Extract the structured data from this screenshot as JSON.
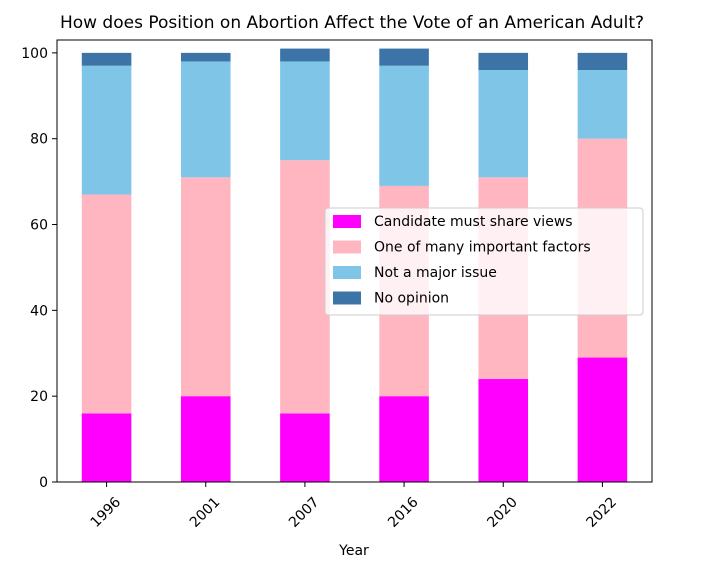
{
  "chart_data": {
    "type": "bar",
    "stacked": true,
    "title": "How does Position on Abortion Affect the Vote of an American Adult?",
    "xlabel": "Year",
    "ylabel": "",
    "categories": [
      "1996",
      "2001",
      "2007",
      "2016",
      "2020",
      "2022"
    ],
    "ylim": [
      0,
      103
    ],
    "yticks": [
      0,
      20,
      40,
      60,
      80,
      100
    ],
    "grid": false,
    "legend_position": "center-right",
    "series": [
      {
        "name": "Candidate must share views",
        "color": "#ff00ff",
        "values": [
          16,
          20,
          16,
          20,
          24,
          29
        ]
      },
      {
        "name": "One of many important factors",
        "color": "#ffb6c1",
        "values": [
          51,
          51,
          59,
          49,
          47,
          51
        ]
      },
      {
        "name": "Not a major issue",
        "color": "#7ec5e8",
        "values": [
          30,
          27,
          23,
          28,
          25,
          16
        ]
      },
      {
        "name": "No opinion",
        "color": "#3d74a8",
        "values": [
          3,
          2,
          3,
          4,
          4,
          4
        ]
      }
    ]
  }
}
